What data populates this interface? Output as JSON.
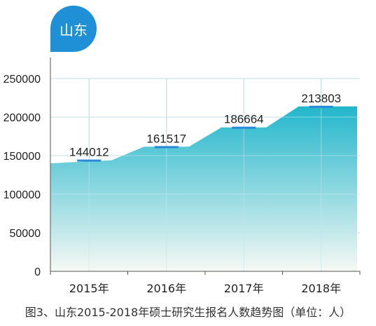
{
  "badge": {
    "label": "山东"
  },
  "caption": "图3、山东2015-2018年硕士研究生报名人数趋势图（单位：人）",
  "colors": {
    "fill_top": "#22b6cc",
    "fill_bottom": "#f6f9f4",
    "marker": "#2a8ad8",
    "badge": "#1f8fd6",
    "grid": "#d0d0d0"
  },
  "chart_data": {
    "type": "area",
    "title": "",
    "xlabel": "",
    "ylabel": "",
    "categories": [
      "2015年",
      "2016年",
      "2017年",
      "2018年"
    ],
    "values": [
      144012,
      161517,
      186664,
      213803
    ],
    "ylim": [
      0,
      250000
    ],
    "yticks": [
      "250000",
      "200000",
      "150000",
      "100000",
      "50000",
      "0"
    ],
    "data_labels": [
      "144012",
      "161517",
      "186664",
      "213803"
    ],
    "grid": true,
    "legend": "none"
  }
}
